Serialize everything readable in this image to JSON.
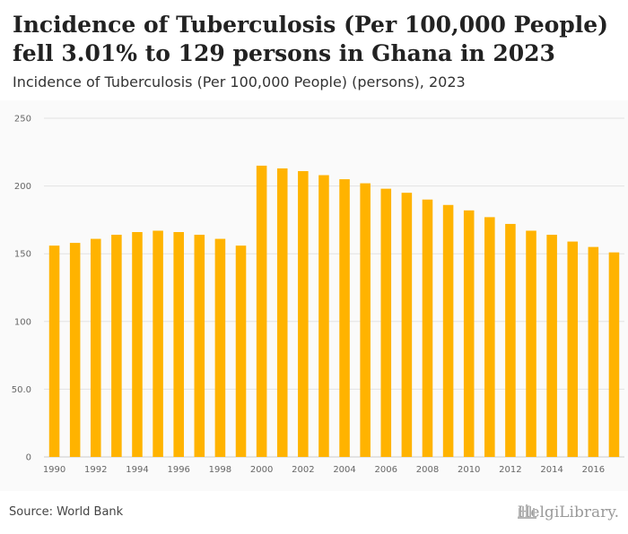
{
  "header": {
    "title": "Incidence of Tuberculosis (Per 100,000 People) fell 3.01% to 129 persons in Ghana in 2023",
    "subtitle": "Incidence of Tuberculosis (Per 100,000 People) (persons), 2023"
  },
  "footer": {
    "source": "Source: World Bank",
    "logo_text": "HelgiLibrary."
  },
  "colors": {
    "bar": "#FFB300",
    "grid": "#e2e2e2",
    "chart_bg": "#fafafa"
  },
  "chart_data": {
    "type": "bar",
    "title": "",
    "xlabel": "",
    "ylabel": "",
    "categories": [
      1990,
      1991,
      1992,
      1993,
      1994,
      1995,
      1996,
      1997,
      1998,
      1999,
      2000,
      2001,
      2002,
      2003,
      2004,
      2005,
      2006,
      2007,
      2008,
      2009,
      2010,
      2011,
      2012,
      2013,
      2014,
      2015,
      2016,
      2017
    ],
    "values": [
      156,
      158,
      161,
      164,
      166,
      167,
      166,
      164,
      161,
      156,
      215,
      213,
      211,
      208,
      205,
      202,
      198,
      195,
      190,
      186,
      182,
      177,
      172,
      167,
      164,
      159,
      155,
      151
    ],
    "x_tick_labels": [
      "1990",
      "1992",
      "1994",
      "1996",
      "1998",
      "2000",
      "2002",
      "2004",
      "2006",
      "2008",
      "2010",
      "2012",
      "2014",
      "2016"
    ],
    "y_ticks": [
      0,
      50,
      100,
      150,
      200,
      250
    ],
    "y_tick_labels": [
      "0",
      "50.0",
      "100",
      "150",
      "200",
      "250"
    ],
    "ylim": [
      0,
      250
    ],
    "grid": true,
    "legend": "none"
  }
}
